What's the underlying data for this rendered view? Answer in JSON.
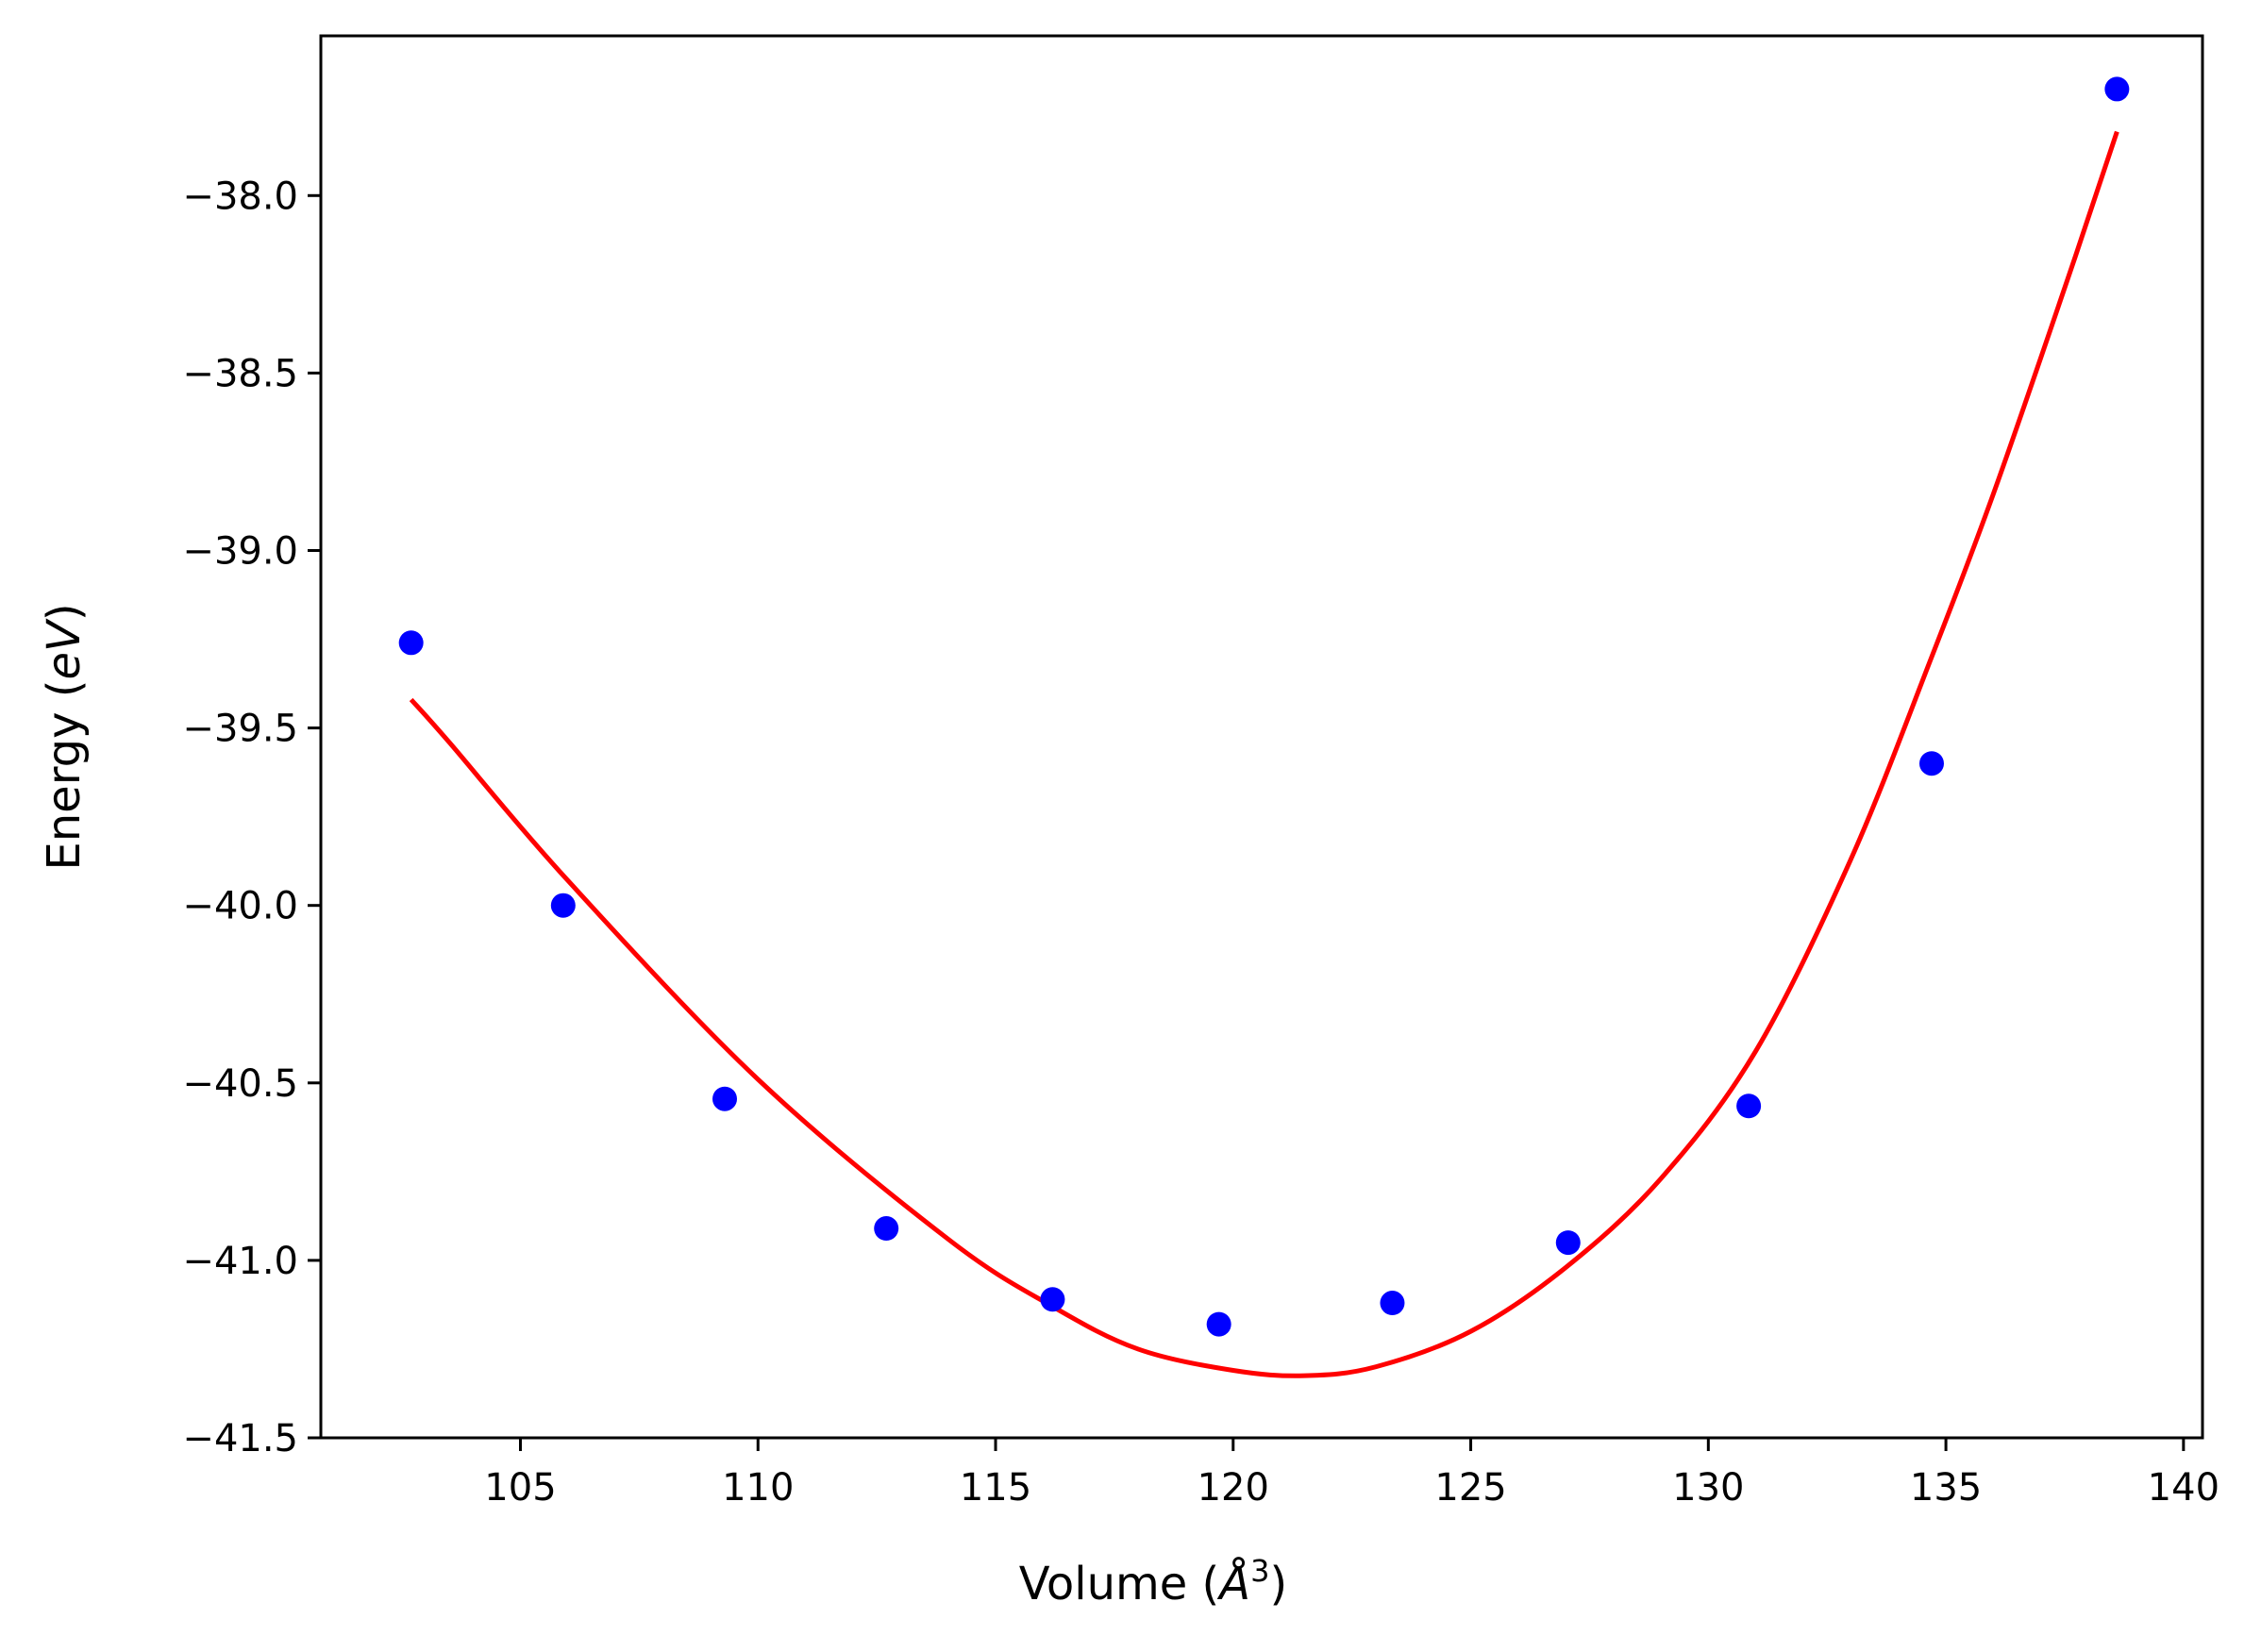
{
  "chart_data": {
    "type": "scatter",
    "title": "",
    "xlabel": "Volume (Å³)",
    "xlabel_parts": {
      "prefix": "Volume (",
      "symbol": "Å",
      "superscript": "3",
      "suffix": ")"
    },
    "ylabel": "Energy (eV)",
    "ylabel_parts": {
      "prefix": "Energy (",
      "italic": "eV",
      "suffix": ")"
    },
    "xlim": [
      100.8,
      140.4
    ],
    "ylim": [
      -41.5,
      -37.55
    ],
    "xticks": [
      105,
      110,
      115,
      120,
      125,
      130,
      135,
      140
    ],
    "yticks": [
      -41.5,
      -41.0,
      -40.5,
      -40.0,
      -39.5,
      -39.0,
      -38.5,
      -38.0
    ],
    "xtick_labels": [
      "105",
      "110",
      "115",
      "120",
      "125",
      "130",
      "135",
      "140"
    ],
    "ytick_labels": [
      "−41.5",
      "−41.0",
      "−40.5",
      "−40.0",
      "−39.5",
      "−39.0",
      "−38.5",
      "−38.0"
    ],
    "grid": false,
    "series": [
      {
        "kind": "scatter",
        "color": "#0000ff",
        "x": [
          102.7,
          105.9,
          109.3,
          112.7,
          116.2,
          119.7,
          123.35,
          127.05,
          130.85,
          134.7,
          138.6
        ],
        "y": [
          -39.26,
          -40.0,
          -40.545,
          -40.91,
          -41.11,
          -41.18,
          -41.12,
          -40.95,
          -40.565,
          -39.6,
          -37.7
        ]
      },
      {
        "kind": "line",
        "color": "#ff0000",
        "x": [
          102.7,
          103.5,
          106.0,
          110.0,
          114.0,
          116.2,
          118.0,
          120.0,
          121.5,
          123.0,
          125.0,
          127.0,
          129.0,
          131.0,
          133.0,
          134.7,
          136.0,
          137.5,
          138.6
        ],
        "y": [
          -39.42,
          -39.54,
          -39.93,
          -40.49,
          -40.94,
          -41.13,
          -41.25,
          -41.31,
          -41.325,
          -41.3,
          -41.2,
          -41.02,
          -40.77,
          -40.41,
          -39.87,
          -39.3,
          -38.84,
          -38.26,
          -37.82
        ]
      }
    ]
  }
}
